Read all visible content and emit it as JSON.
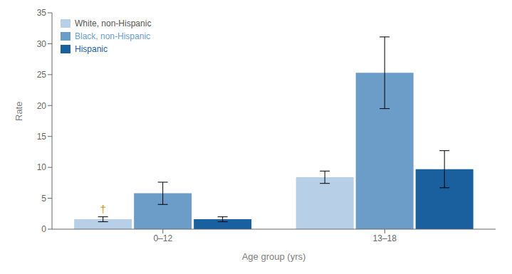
{
  "chart_data": {
    "type": "bar",
    "categories": [
      "0–12",
      "13–18"
    ],
    "series": [
      {
        "name": "White, non-Hispanic",
        "color": "#b8cfe8",
        "values": [
          1.6,
          8.4
        ],
        "errors": [
          0.4,
          1.0
        ]
      },
      {
        "name": "Black, non-Hispanic",
        "color": "#6b9dc8",
        "values": [
          5.8,
          25.3
        ],
        "errors": [
          1.8,
          5.8
        ]
      },
      {
        "name": "Hispanic",
        "color": "#1a5f9e",
        "values": [
          1.6,
          9.7
        ],
        "errors": [
          0.4,
          3.0
        ]
      }
    ],
    "xlabel": "Age group (yrs)",
    "ylabel": "Rate",
    "ylim": [
      0,
      35
    ],
    "yticks": [
      0,
      5,
      10,
      15,
      20,
      25,
      30,
      35
    ],
    "legend": "upper left",
    "annotations": [
      {
        "text": "†",
        "category": "0–12",
        "series": "White, non-Hispanic",
        "color": "#c8960a"
      }
    ]
  }
}
